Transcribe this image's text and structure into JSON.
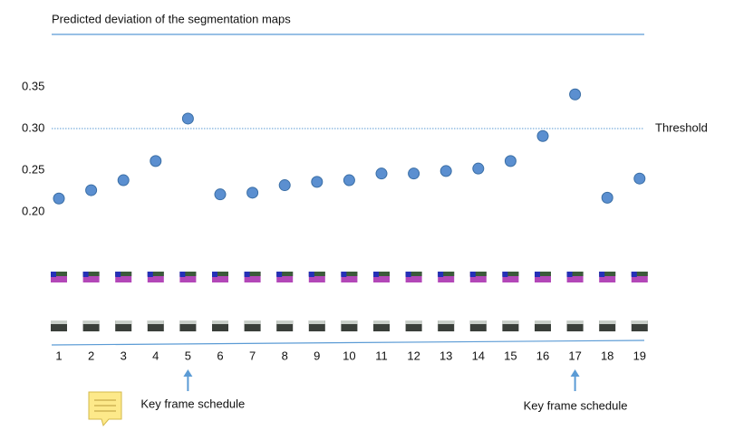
{
  "chart_data": {
    "type": "scatter",
    "title": "Predicted deviation of the segmentation maps",
    "x": [
      1,
      2,
      3,
      4,
      5,
      6,
      7,
      8,
      9,
      10,
      11,
      12,
      13,
      14,
      15,
      16,
      17,
      18,
      19
    ],
    "values": [
      0.216,
      0.226,
      0.238,
      0.261,
      0.312,
      0.221,
      0.223,
      0.232,
      0.236,
      0.238,
      0.246,
      0.246,
      0.249,
      0.252,
      0.261,
      0.291,
      0.341,
      0.217,
      0.24
    ],
    "color": "#5b8fd0",
    "xlim": [
      0,
      20
    ],
    "xticks": [
      1,
      2,
      3,
      4,
      5,
      6,
      7,
      8,
      9,
      10,
      11,
      12,
      13,
      14,
      15,
      16,
      17,
      18,
      19
    ],
    "ylim": [
      0.15,
      0.4
    ],
    "yticks": [
      {
        "value": 0.2,
        "label": "0.20"
      },
      {
        "value": 0.25,
        "label": "0.25"
      },
      {
        "value": 0.3,
        "label": "0.30"
      },
      {
        "value": 0.35,
        "label": "0.35"
      }
    ],
    "threshold": {
      "text": "Threshold",
      "value": 0.3
    },
    "annotations": [
      {
        "text": "Key frame schedule",
        "x": 5
      },
      {
        "text": "Key frame schedule",
        "x": 17
      }
    ]
  }
}
